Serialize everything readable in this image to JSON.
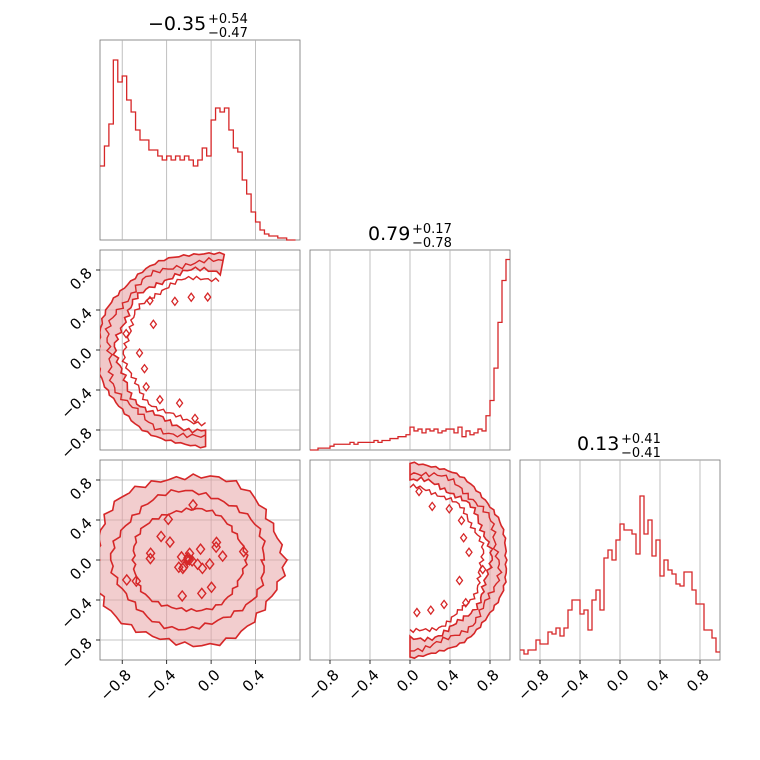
{
  "colors": {
    "series": "#d62728",
    "fill": "#e8a4a5",
    "grid": "#b0b0b0"
  },
  "chart_data": [
    {
      "type": "histogram",
      "panel": "p00",
      "grid": true,
      "title": {
        "main": "−0.35",
        "up": "+0.54",
        "down": "−0.47"
      },
      "x": [
        -1.0,
        -0.96,
        -0.92,
        -0.88,
        -0.84,
        -0.8,
        -0.76,
        -0.72,
        -0.68,
        -0.64,
        -0.6,
        -0.56,
        -0.52,
        -0.48,
        -0.44,
        -0.4,
        -0.36,
        -0.32,
        -0.28,
        -0.24,
        -0.2,
        -0.16,
        -0.12,
        -0.08,
        -0.04,
        0.0,
        0.04,
        0.08,
        0.12,
        0.16,
        0.2,
        0.24,
        0.28,
        0.32,
        0.36,
        0.4,
        0.44,
        0.48,
        0.52,
        0.56,
        0.6,
        0.64,
        0.68,
        0.72
      ],
      "values": [
        0.37,
        0.47,
        0.58,
        0.9,
        0.79,
        0.82,
        0.7,
        0.64,
        0.55,
        0.5,
        0.5,
        0.45,
        0.45,
        0.42,
        0.4,
        0.42,
        0.4,
        0.42,
        0.4,
        0.42,
        0.4,
        0.37,
        0.4,
        0.46,
        0.42,
        0.6,
        0.66,
        0.64,
        0.66,
        0.55,
        0.46,
        0.44,
        0.3,
        0.23,
        0.14,
        0.09,
        0.05,
        0.03,
        0.02,
        0.02,
        0.01,
        0.01,
        0.0,
        0.0
      ],
      "xlim": [
        -1.0,
        0.8
      ],
      "ylim": [
        0,
        1
      ],
      "xticks": [
        -0.8,
        -0.4,
        0.0,
        0.4
      ]
    },
    {
      "type": "histogram",
      "panel": "p11",
      "grid": true,
      "title": {
        "main": "0.79",
        "up": "+0.17",
        "down": "−0.78"
      },
      "x": [
        -1.0,
        -0.96,
        -0.92,
        -0.88,
        -0.84,
        -0.8,
        -0.76,
        -0.72,
        -0.68,
        -0.64,
        -0.6,
        -0.56,
        -0.52,
        -0.48,
        -0.44,
        -0.4,
        -0.36,
        -0.32,
        -0.28,
        -0.24,
        -0.2,
        -0.16,
        -0.12,
        -0.08,
        -0.04,
        0.0,
        0.04,
        0.08,
        0.12,
        0.16,
        0.2,
        0.24,
        0.28,
        0.32,
        0.36,
        0.4,
        0.44,
        0.48,
        0.52,
        0.56,
        0.6,
        0.64,
        0.68,
        0.72,
        0.76,
        0.8,
        0.84,
        0.88,
        0.92,
        0.96
      ],
      "values": [
        0.0,
        0.0,
        0.01,
        0.01,
        0.01,
        0.02,
        0.03,
        0.03,
        0.03,
        0.03,
        0.04,
        0.03,
        0.04,
        0.04,
        0.04,
        0.04,
        0.05,
        0.04,
        0.05,
        0.05,
        0.06,
        0.06,
        0.07,
        0.07,
        0.08,
        0.12,
        0.1,
        0.11,
        0.09,
        0.11,
        0.1,
        0.11,
        0.09,
        0.1,
        0.11,
        0.11,
        0.09,
        0.12,
        0.07,
        0.1,
        0.08,
        0.09,
        0.11,
        0.1,
        0.18,
        0.26,
        0.43,
        0.67,
        0.89,
        1.0
      ],
      "xlim": [
        -1.0,
        1.0
      ],
      "ylim": [
        0,
        1.05
      ],
      "xticks": [
        -0.8,
        -0.4,
        0.0,
        0.4,
        0.8
      ]
    },
    {
      "type": "histogram",
      "panel": "p22",
      "grid": true,
      "title": {
        "main": "0.13",
        "up": "+0.41",
        "down": "−0.41"
      },
      "xlabel_ticks": [
        "−0.8",
        "−0.4",
        "0.0",
        "0.4",
        "0.8"
      ],
      "x": [
        -1.0,
        -0.96,
        -0.92,
        -0.88,
        -0.84,
        -0.8,
        -0.76,
        -0.72,
        -0.68,
        -0.64,
        -0.6,
        -0.56,
        -0.52,
        -0.48,
        -0.44,
        -0.4,
        -0.36,
        -0.32,
        -0.28,
        -0.24,
        -0.2,
        -0.16,
        -0.12,
        -0.08,
        -0.04,
        0.0,
        0.04,
        0.08,
        0.12,
        0.16,
        0.2,
        0.24,
        0.28,
        0.32,
        0.36,
        0.4,
        0.44,
        0.48,
        0.52,
        0.56,
        0.6,
        0.64,
        0.68,
        0.72,
        0.76,
        0.8,
        0.84,
        0.88,
        0.92,
        0.96
      ],
      "values": [
        0.05,
        0.03,
        0.05,
        0.05,
        0.1,
        0.08,
        0.08,
        0.14,
        0.13,
        0.16,
        0.12,
        0.16,
        0.25,
        0.3,
        0.3,
        0.23,
        0.25,
        0.15,
        0.3,
        0.35,
        0.25,
        0.51,
        0.55,
        0.5,
        0.6,
        0.68,
        0.65,
        0.65,
        0.63,
        0.53,
        0.82,
        0.63,
        0.7,
        0.52,
        0.6,
        0.42,
        0.5,
        0.45,
        0.43,
        0.38,
        0.37,
        0.44,
        0.44,
        0.35,
        0.28,
        0.28,
        0.15,
        0.15,
        0.11,
        0.04
      ],
      "xlim": [
        -1.0,
        1.0
      ],
      "ylim": [
        0,
        1.0
      ],
      "xticks": [
        -0.8,
        -0.4,
        0.0,
        0.4,
        0.8
      ]
    },
    {
      "type": "contour",
      "panel": "p10",
      "description": "2D density: ring arc from left side to top",
      "xlim": [
        -1.0,
        0.8
      ],
      "ylim": [
        -1.0,
        1.0
      ],
      "shape": {
        "center": [
          -0.05,
          0.0
        ],
        "radius": 0.95,
        "angle_from_deg": 80,
        "angle_to_deg": 270
      },
      "xticks": [
        -0.8,
        -0.4,
        0.0,
        0.4
      ],
      "yticks": [
        -0.8,
        -0.4,
        0.0,
        0.4,
        0.8
      ]
    },
    {
      "type": "contour",
      "panel": "p20",
      "description": "2D density: filled disk",
      "xlim": [
        -1.0,
        0.8
      ],
      "ylim": [
        -1.0,
        1.0
      ],
      "shape": {
        "center": [
          -0.2,
          0.0
        ],
        "radius": 0.85
      },
      "xticks": [
        -0.8,
        -0.4,
        0.0,
        0.4
      ],
      "yticks": [
        -0.8,
        -0.4,
        0.0,
        0.4,
        0.8
      ]
    },
    {
      "type": "contour",
      "panel": "p21",
      "description": "2D density: ring arc on right side",
      "xlim": [
        -1.0,
        1.0
      ],
      "ylim": [
        -1.0,
        1.0
      ],
      "shape": {
        "center": [
          0.0,
          0.0
        ],
        "radius": 0.95,
        "angle_from_deg": -90,
        "angle_to_deg": 90
      },
      "xticks": [
        -0.8,
        -0.4,
        0.0,
        0.4,
        0.8
      ],
      "yticks": []
    }
  ],
  "tick_labels": {
    "x_left": [
      "−0.8",
      "−0.4",
      "0.0",
      "0.4"
    ],
    "x_full": [
      "−0.8",
      "−0.4",
      "0.0",
      "0.4",
      "0.8"
    ],
    "y_rows": [
      "0.8",
      "0.4",
      "0.0",
      "−0.4",
      "−0.8"
    ]
  }
}
